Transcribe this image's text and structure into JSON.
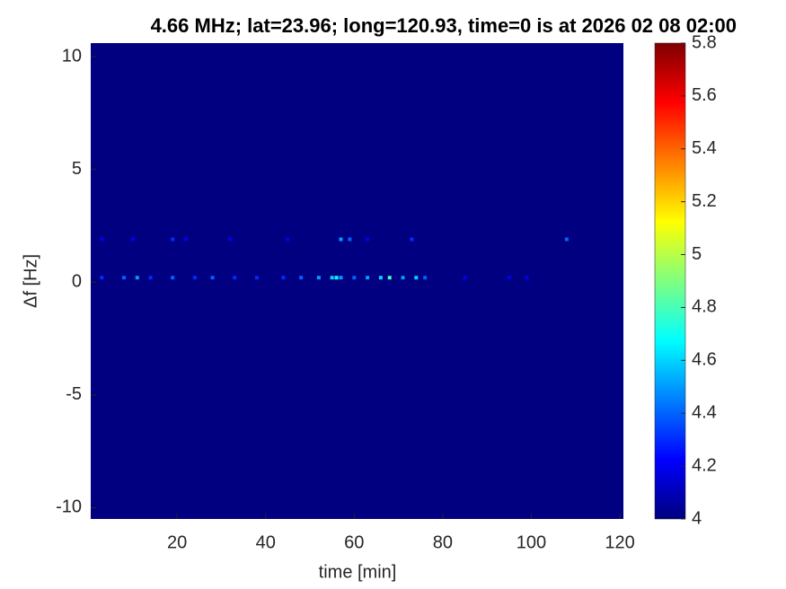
{
  "chart_data": {
    "type": "heatmap",
    "title": "4.66 MHz;  lat=23.96; long=120.93, time=0 is at 2026 02 08 02:00",
    "xlabel": "time [min]",
    "ylabel": "Δf [Hz]",
    "colormap": "jet",
    "xlim": [
      0.5,
      120.8
    ],
    "ylim": [
      -10.5,
      10.6
    ],
    "xticks": [
      20,
      40,
      60,
      80,
      100,
      120
    ],
    "yticks": [
      -10,
      -5,
      0,
      5,
      10
    ],
    "clim": [
      4,
      5.8
    ],
    "cticks": [
      4,
      4.2,
      4.4,
      4.6,
      4.8,
      5,
      5.2,
      5.4,
      5.6,
      5.8
    ],
    "base_value": 4,
    "x": [
      3,
      8,
      11,
      14,
      19,
      24,
      28,
      33,
      38,
      44,
      48,
      52,
      55,
      56,
      57,
      60,
      63,
      66,
      68,
      71,
      74,
      76,
      85,
      95,
      99,
      3,
      10,
      19,
      22,
      32,
      45,
      57,
      59,
      63,
      73,
      108
    ],
    "y": [
      0.2,
      0.2,
      0.2,
      0.2,
      0.2,
      0.2,
      0.2,
      0.2,
      0.2,
      0.2,
      0.2,
      0.2,
      0.2,
      0.2,
      0.2,
      0.2,
      0.2,
      0.2,
      0.2,
      0.2,
      0.2,
      0.2,
      0.2,
      0.2,
      0.2,
      1.9,
      1.9,
      1.9,
      1.9,
      1.9,
      1.9,
      1.9,
      1.9,
      1.9,
      1.9,
      1.9
    ],
    "values": [
      4.3,
      4.4,
      4.5,
      4.3,
      4.4,
      4.3,
      4.4,
      4.3,
      4.3,
      4.3,
      4.4,
      4.5,
      4.6,
      4.7,
      4.5,
      4.4,
      4.5,
      4.6,
      4.8,
      4.5,
      4.6,
      4.4,
      4.2,
      4.2,
      4.2,
      4.2,
      4.2,
      4.3,
      4.2,
      4.2,
      4.2,
      4.5,
      4.4,
      4.2,
      4.3,
      4.4
    ]
  }
}
